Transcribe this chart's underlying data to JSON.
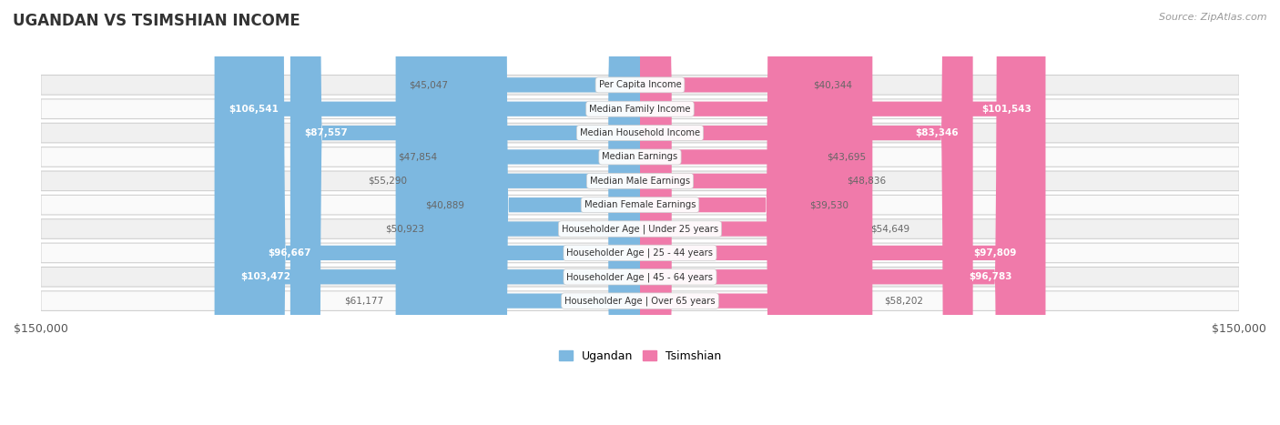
{
  "title": "UGANDAN VS TSIMSHIAN INCOME",
  "source": "Source: ZipAtlas.com",
  "categories": [
    "Per Capita Income",
    "Median Family Income",
    "Median Household Income",
    "Median Earnings",
    "Median Male Earnings",
    "Median Female Earnings",
    "Householder Age | Under 25 years",
    "Householder Age | 25 - 44 years",
    "Householder Age | 45 - 64 years",
    "Householder Age | Over 65 years"
  ],
  "ugandan": [
    45047,
    106541,
    87557,
    47854,
    55290,
    40889,
    50923,
    96667,
    103472,
    61177
  ],
  "tsimshian": [
    40344,
    101543,
    83346,
    43695,
    48836,
    39530,
    54649,
    97809,
    96783,
    58202
  ],
  "ugandan_labels": [
    "$45,047",
    "$106,541",
    "$87,557",
    "$47,854",
    "$55,290",
    "$40,889",
    "$50,923",
    "$96,667",
    "$103,472",
    "$61,177"
  ],
  "tsimshian_labels": [
    "$40,344",
    "$101,543",
    "$83,346",
    "$43,695",
    "$48,836",
    "$39,530",
    "$54,649",
    "$97,809",
    "$96,783",
    "$58,202"
  ],
  "max_val": 150000,
  "ugandan_color": "#7db8e0",
  "tsimshian_color": "#f07aaa",
  "bg_color": "#ffffff",
  "row_bg_even": "#f0f0f0",
  "row_bg_odd": "#fafafa",
  "inside_threshold": 65000,
  "x_axis_label_left": "$150,000",
  "x_axis_label_right": "$150,000",
  "legend_ugandan": "Ugandan",
  "legend_tsimshian": "Tsimshian"
}
